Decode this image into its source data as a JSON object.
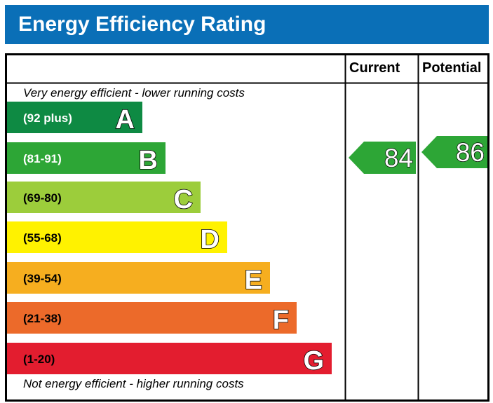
{
  "title": "Energy Efficiency Rating",
  "columns": {
    "current": "Current",
    "potential": "Potential"
  },
  "notes": {
    "top": "Very energy efficient - lower running costs",
    "bottom": "Not energy efficient - higher running costs"
  },
  "chart_data": {
    "type": "bar",
    "title": "Energy Efficiency Rating",
    "categories": [
      "A",
      "B",
      "C",
      "D",
      "E",
      "F",
      "G"
    ],
    "bands": [
      {
        "letter": "A",
        "range": "(92 plus)",
        "color": "#0e8a43",
        "text_color": "#ffffff"
      },
      {
        "letter": "B",
        "range": "(81-91)",
        "color": "#2da636",
        "text_color": "#ffffff"
      },
      {
        "letter": "C",
        "range": "(69-80)",
        "color": "#9ccd3b",
        "text_color": "#000000"
      },
      {
        "letter": "D",
        "range": "(55-68)",
        "color": "#fff200",
        "text_color": "#000000"
      },
      {
        "letter": "E",
        "range": "(39-54)",
        "color": "#f6ae1f",
        "text_color": "#000000"
      },
      {
        "letter": "F",
        "range": "(21-38)",
        "color": "#ec6a2a",
        "text_color": "#000000"
      },
      {
        "letter": "G",
        "range": "(1-20)",
        "color": "#e31d2f",
        "text_color": "#000000"
      }
    ],
    "current": {
      "value": 84,
      "band": "B",
      "color": "#2da636"
    },
    "potential": {
      "value": 86,
      "band": "B",
      "color": "#2da636"
    }
  }
}
